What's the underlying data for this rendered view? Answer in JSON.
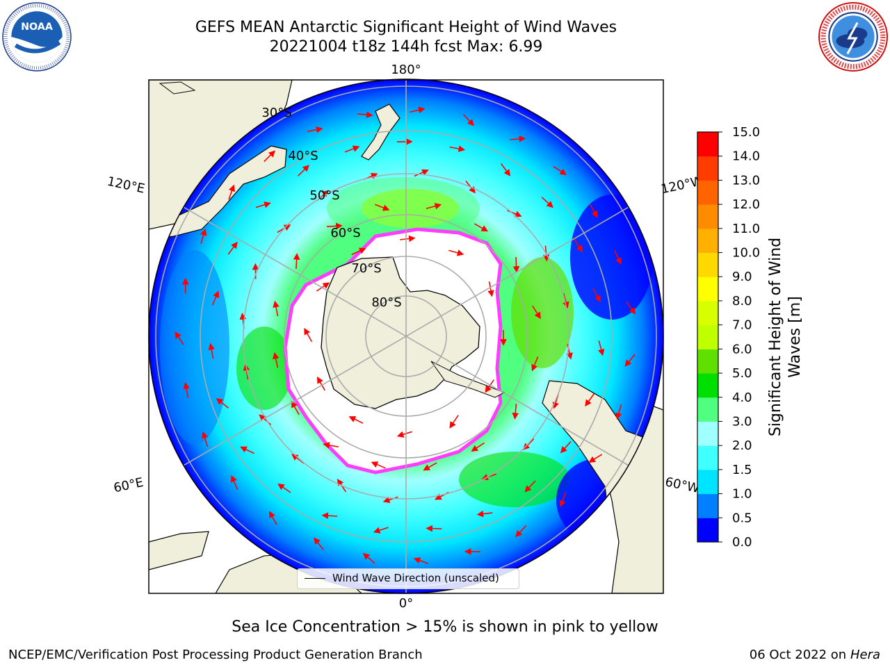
{
  "header": {
    "title": "GEFS MEAN Antarctic Significant Height of Wind Waves",
    "subtitle": "20221004 t18z 144h fcst   Max: 6.99"
  },
  "logos": {
    "left": {
      "text": "NOAA",
      "ring_text": "NATIONAL OCEANIC AND ATMOSPHERIC ADMINISTRATION · U.S. DEPARTMENT OF COMMERCE"
    },
    "right": {
      "ring_text": "NATIONAL WEATHER SERVICE"
    }
  },
  "map": {
    "longitude_labels": {
      "top": "180°",
      "bottom": "0°",
      "upper_left": "120°E",
      "upper_right": "120°W",
      "lower_left": "60°E",
      "lower_right": "60°W"
    },
    "latitude_labels": [
      "30°S",
      "40°S",
      "50°S",
      "60°S",
      "70°S",
      "80°S"
    ],
    "legend": "Wind Wave Direction (unscaled)"
  },
  "colorbar": {
    "label": "Significant Height of Wind Waves [m]",
    "ticks": [
      "0.0",
      "0.5",
      "1.0",
      "1.5",
      "2.0",
      "3.0",
      "4.0",
      "5.0",
      "6.0",
      "7.0",
      "8.0",
      "9.0",
      "10.0",
      "11.0",
      "12.0",
      "13.0",
      "14.0",
      "15.0"
    ],
    "colors": [
      "#0000ff",
      "#0080ff",
      "#00e5ff",
      "#40ffff",
      "#a0ffff",
      "#50ff80",
      "#00e000",
      "#60e000",
      "#c0ff00",
      "#d8ff00",
      "#ffff00",
      "#ffd800",
      "#ffb000",
      "#ff8c00",
      "#ff6400",
      "#ff3c00",
      "#ff0000"
    ]
  },
  "bottom_note": "Sea Ice Concentration > 15% is shown in pink to yellow",
  "footer": {
    "left": "NCEP/EMC/Verification Post Processing Product Generation Branch",
    "right_prefix": "06 Oct 2022 on",
    "right_host": "Hera"
  }
}
